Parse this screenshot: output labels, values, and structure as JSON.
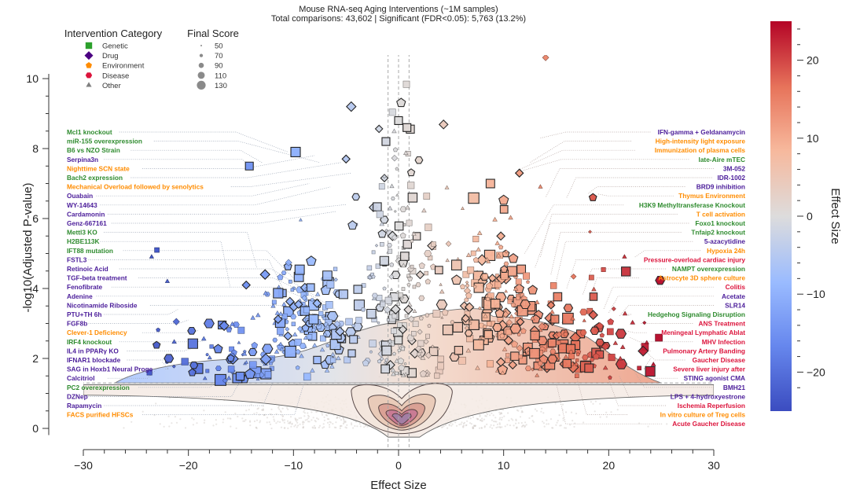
{
  "chart_data": {
    "type": "scatter",
    "subtype": "volcano",
    "title": "Mouse RNA-seq Aging Interventions (~1M samples)",
    "subtitle": "Total comparisons: 43,602 | Significant (FDR<0.05): 5,763 (13.2%)",
    "xlabel": "Effect Size",
    "ylabel": "-log10(Adjusted P-value)",
    "xlim": [
      -30,
      30
    ],
    "ylim": [
      -0.3,
      10.8
    ],
    "xticks": [
      -30,
      -20,
      -10,
      0,
      10,
      20,
      30
    ],
    "xtick_labels": [
      "−30",
      "−20",
      "−10",
      "0",
      "10",
      "20",
      "30"
    ],
    "yticks": [
      0,
      2,
      4,
      6,
      8,
      10
    ],
    "ytick_labels": [
      "0",
      "2",
      "4",
      "6",
      "8",
      "10"
    ],
    "significance_threshold_y": 1.3,
    "effect_threshold_lines_x": [
      -1,
      0,
      1
    ],
    "colorbar": {
      "label": "Effect Size",
      "range": [
        -25,
        25
      ],
      "ticks": [
        20,
        10,
        0,
        -10,
        -20
      ],
      "tick_labels": [
        "20",
        "10",
        "0",
        "−10",
        "−20"
      ],
      "colormap": "coolwarm",
      "stops": [
        "#3b4cc0",
        "#7b9ff9",
        "#c0d4f5",
        "#dddddd",
        "#f2cbb7",
        "#ee8468",
        "#b40426"
      ]
    },
    "legend_category": {
      "title": "Intervention Category",
      "placement": "top-left",
      "entries": [
        {
          "label": "Genetic",
          "shape": "square",
          "color": "#2ca02c"
        },
        {
          "label": "Drug",
          "shape": "diamond",
          "color": "#4b0082"
        },
        {
          "label": "Environment",
          "shape": "pentagon",
          "color": "#ff8c00"
        },
        {
          "label": "Disease",
          "shape": "hexagon",
          "color": "#dc143c"
        },
        {
          "label": "Other",
          "shape": "triangle",
          "color": "#808080"
        }
      ]
    },
    "legend_size": {
      "title": "Final Score",
      "placement": "top-left",
      "entries": [
        50,
        70,
        90,
        110,
        130
      ]
    },
    "annotations_left": [
      {
        "label": "Mcl1 knockout",
        "category": "Genetic",
        "x": -10.5,
        "y": 7.9
      },
      {
        "label": "miR-155 overexpression",
        "category": "Genetic",
        "x": -7.5,
        "y": 7.6
      },
      {
        "label": "B6 vs NZO Strain",
        "category": "Genetic",
        "x": -13.0,
        "y": 7.6
      },
      {
        "label": "Serpina3n",
        "category": "Drug",
        "x": -14.0,
        "y": 7.5
      },
      {
        "label": "Nighttime SCN state",
        "category": "Environment",
        "x": -8.0,
        "y": 7.8
      },
      {
        "label": "Bach2 expression",
        "category": "Genetic",
        "x": -5.5,
        "y": 7.6
      },
      {
        "label": "Mechanical Overload followed by senolytics",
        "category": "Environment",
        "x": -4.5,
        "y": 7.3
      },
      {
        "label": "Ouabain",
        "category": "Drug",
        "x": -8.5,
        "y": 7.0
      },
      {
        "label": "WY-14643",
        "category": "Drug",
        "x": -6.5,
        "y": 6.9
      },
      {
        "label": "Cardamonin",
        "category": "Drug",
        "x": -5.0,
        "y": 6.4
      },
      {
        "label": "Genz-667161",
        "category": "Drug",
        "x": -6.0,
        "y": 6.2
      },
      {
        "label": "Mettl3 KO",
        "category": "Genetic",
        "x": -13.5,
        "y": 4.6
      },
      {
        "label": "H2BE113K",
        "category": "Genetic",
        "x": -16.0,
        "y": 4.0
      },
      {
        "label": "IFT88 mutation",
        "category": "Genetic",
        "x": -10.0,
        "y": 4.3
      },
      {
        "label": "FSTL3",
        "category": "Drug",
        "x": -11.0,
        "y": 4.0
      },
      {
        "label": "Retinoic Acid",
        "category": "Drug",
        "x": -8.0,
        "y": 3.8
      },
      {
        "label": "TGF-beta treatment",
        "category": "Drug",
        "x": -7.0,
        "y": 3.6
      },
      {
        "label": "Fenofibrate",
        "category": "Drug",
        "x": -6.0,
        "y": 3.4
      },
      {
        "label": "Adenine",
        "category": "Drug",
        "x": -5.5,
        "y": 3.2
      },
      {
        "label": "Nicotinamide Riboside",
        "category": "Drug",
        "x": -4.5,
        "y": 3.0
      },
      {
        "label": "PTU+TH 6h",
        "category": "Drug",
        "x": -21.0,
        "y": 3.4
      },
      {
        "label": "FGF8b",
        "category": "Drug",
        "x": -20.0,
        "y": 3.1
      },
      {
        "label": "Clever-1 Deficiency",
        "category": "Environment",
        "x": -19.0,
        "y": 2.8
      },
      {
        "label": "IRF4 knockout",
        "category": "Genetic",
        "x": -18.5,
        "y": 2.5
      },
      {
        "label": "IL4 in PPARγ KO",
        "category": "Drug",
        "x": -19.5,
        "y": 2.3
      },
      {
        "label": "IFNAR1 blockade",
        "category": "Drug",
        "x": -21.5,
        "y": 2.1
      },
      {
        "label": "SAG in Hoxb1 Neural Proge",
        "category": "Drug",
        "x": -22.5,
        "y": 1.9
      },
      {
        "label": "Calcitriol",
        "category": "Drug",
        "x": -23.0,
        "y": 1.7
      },
      {
        "label": "PC2 overexpression",
        "category": "Genetic",
        "x": -17.0,
        "y": 1.5
      },
      {
        "label": "DZNep",
        "category": "Drug",
        "x": -15.0,
        "y": 1.4
      },
      {
        "label": "Rapamycin",
        "category": "Drug",
        "x": -12.0,
        "y": 1.3
      },
      {
        "label": "FACS purified HFSCs",
        "category": "Environment",
        "x": -9.0,
        "y": 1.3
      }
    ],
    "annotations_right": [
      {
        "label": "IFN-gamma + Geldanamycin",
        "category": "Drug",
        "x": 13.5,
        "y": 8.3
      },
      {
        "label": "High-intensity light exposure",
        "category": "Environment",
        "x": 12.5,
        "y": 7.6
      },
      {
        "label": "Immunization of plasma cells",
        "category": "Environment",
        "x": 11.5,
        "y": 7.4
      },
      {
        "label": "late-Aire mTEC",
        "category": "Genetic",
        "x": 11.0,
        "y": 7.3
      },
      {
        "label": "3M-052",
        "category": "Drug",
        "x": 14.0,
        "y": 6.6
      },
      {
        "label": "IDR-1002",
        "category": "Drug",
        "x": 16.0,
        "y": 6.6
      },
      {
        "label": "BRD9 inhibition",
        "category": "Drug",
        "x": 18.0,
        "y": 6.7
      },
      {
        "label": "Thymus Environment",
        "category": "Environment",
        "x": 19.0,
        "y": 6.7
      },
      {
        "label": "H3K9 Methyltransferase Knockout",
        "category": "Genetic",
        "x": 12.0,
        "y": 5.0
      },
      {
        "label": "T cell activation",
        "category": "Environment",
        "x": 13.5,
        "y": 4.9
      },
      {
        "label": "Foxo1 knockout",
        "category": "Genetic",
        "x": 13.0,
        "y": 4.6
      },
      {
        "label": "Tnfaip2 knockout",
        "category": "Genetic",
        "x": 14.5,
        "y": 4.4
      },
      {
        "label": "5-azacytidine",
        "category": "Drug",
        "x": 15.0,
        "y": 4.2
      },
      {
        "label": "Hypoxia 24h",
        "category": "Environment",
        "x": 22.5,
        "y": 4.9
      },
      {
        "label": "Pressure-overload cardiac injury",
        "category": "Disease",
        "x": 16.0,
        "y": 4.0
      },
      {
        "label": "NAMPT overexpression",
        "category": "Genetic",
        "x": 17.5,
        "y": 3.8
      },
      {
        "label": "Astrocyte 3D sphere culture",
        "category": "Environment",
        "x": 18.0,
        "y": 3.6
      },
      {
        "label": "Colitis",
        "category": "Disease",
        "x": 19.5,
        "y": 3.4
      },
      {
        "label": "Acetate",
        "category": "Drug",
        "x": 20.0,
        "y": 3.3
      },
      {
        "label": "SLR14",
        "category": "Drug",
        "x": 21.0,
        "y": 3.2
      },
      {
        "label": "Hedgehog Signaling Disruption",
        "category": "Genetic",
        "x": 22.0,
        "y": 3.2
      },
      {
        "label": "ANS Treatment",
        "category": "Disease",
        "x": 23.0,
        "y": 3.0
      },
      {
        "label": "Meningeal Lymphatic Ablat",
        "category": "Disease",
        "x": 21.5,
        "y": 2.8
      },
      {
        "label": "MHV Infection",
        "category": "Disease",
        "x": 22.0,
        "y": 2.6
      },
      {
        "label": "Pulmonary Artery Banding",
        "category": "Disease",
        "x": 23.0,
        "y": 2.4
      },
      {
        "label": "Gaucher Disease",
        "category": "Disease",
        "x": 23.5,
        "y": 2.2
      },
      {
        "label": "Severe liver injury after",
        "category": "Disease",
        "x": 24.0,
        "y": 2.0
      },
      {
        "label": "STING agonist CMA",
        "category": "Drug",
        "x": 23.5,
        "y": 1.8
      },
      {
        "label": "BMH21",
        "category": "Drug",
        "x": 22.5,
        "y": 1.6
      },
      {
        "label": "LPS + 4-hydroxyestrone",
        "category": "Drug",
        "x": 21.0,
        "y": 1.5
      },
      {
        "label": "Ischemia Reperfusion",
        "category": "Disease",
        "x": 20.0,
        "y": 1.4
      },
      {
        "label": "In vitro culture of Treg cells",
        "category": "Environment",
        "x": 17.0,
        "y": 1.4
      },
      {
        "label": "Acute Gaucher Disease",
        "category": "Disease",
        "x": 15.0,
        "y": 1.3
      }
    ],
    "annotation_colors": {
      "Genetic": "#2e8b2e",
      "Drug": "#4b1d9a",
      "Environment": "#ff8c00",
      "Disease": "#dc143c",
      "Other": "#808080"
    },
    "density_contours": {
      "description": "KDE contour overlay for the bulk of non-significant comparisons, peak near effect size 0, -log10 p ~0.3",
      "levels": 5,
      "fill_colors": [
        "#f3e6dc",
        "#e8c9b6",
        "#d99d92",
        "#c97794",
        "#9f7fa6"
      ]
    }
  }
}
